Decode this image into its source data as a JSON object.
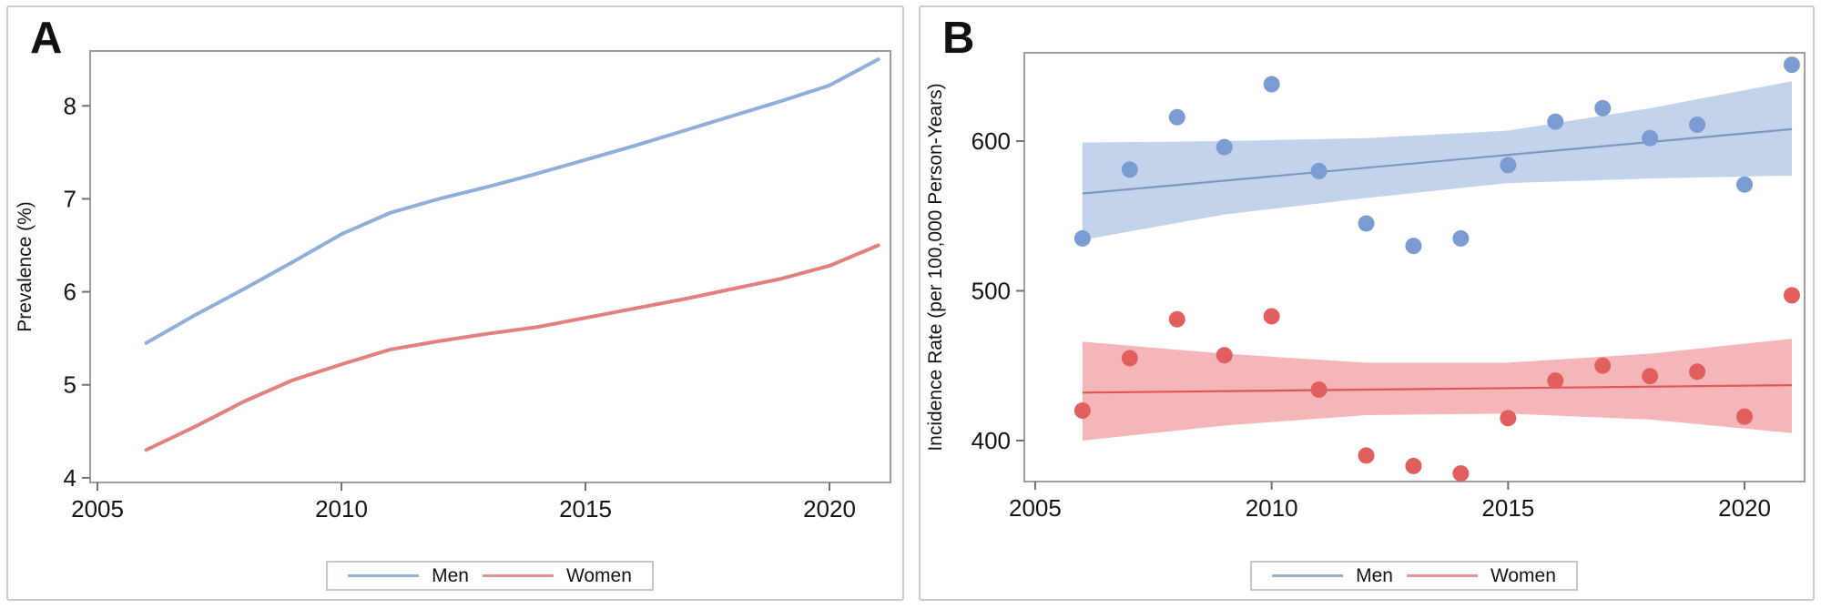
{
  "panels": [
    {
      "label": "A",
      "legend": [
        {
          "name": "Men",
          "color": "#92B1DB"
        },
        {
          "name": "Women",
          "color": "#E69090"
        }
      ],
      "chart_data": {
        "type": "line",
        "title": "",
        "xlabel": "",
        "ylabel": "Prevalence (%)",
        "x": [
          2006,
          2007,
          2008,
          2009,
          2010,
          2011,
          2012,
          2013,
          2014,
          2015,
          2016,
          2017,
          2018,
          2019,
          2020,
          2021
        ],
        "series": [
          {
            "name": "Men",
            "color": "#8FAFDA",
            "values": [
              5.45,
              5.75,
              6.03,
              6.32,
              6.62,
              6.85,
              7.0,
              7.13,
              7.27,
              7.42,
              7.57,
              7.73,
              7.89,
              8.05,
              8.22,
              8.5
            ]
          },
          {
            "name": "Women",
            "color": "#E28080",
            "values": [
              4.3,
              4.55,
              4.82,
              5.05,
              5.22,
              5.38,
              5.47,
              5.55,
              5.62,
              5.72,
              5.82,
              5.92,
              6.03,
              6.14,
              6.28,
              6.5
            ]
          }
        ],
        "xticks": [
          2005,
          2010,
          2015,
          2020
        ],
        "yticks": [
          4,
          5,
          6,
          7,
          8
        ],
        "xlim": [
          2004.85,
          2021.25
        ],
        "ylim": [
          3.95,
          8.59
        ],
        "grid": false,
        "legend_position": "bottom-center"
      }
    },
    {
      "label": "B",
      "legend": [
        {
          "name": "Men",
          "color": "#9BB0C4"
        },
        {
          "name": "Women",
          "color": "#E59296"
        }
      ],
      "chart_data": {
        "type": "scatter",
        "title": "",
        "xlabel": "",
        "ylabel": "Incidence Rate (per 100,000 Person-Years)",
        "x": [
          2006,
          2007,
          2008,
          2009,
          2010,
          2011,
          2012,
          2013,
          2014,
          2015,
          2016,
          2017,
          2018,
          2019,
          2020,
          2021
        ],
        "series": [
          {
            "name": "Men",
            "dot_color": "#7B9CD3",
            "line_color": "#7D96BE",
            "band_color": "#C4D3EC",
            "values": [
              535,
              581,
              616,
              596,
              638,
              580,
              545,
              530,
              535,
              584,
              613,
              622,
              602,
              611,
              571,
              651
            ],
            "trend": {
              "x": [
                2006,
                2021
              ],
              "y": [
                565,
                608
              ]
            },
            "band": {
              "x": [
                2006,
                2009,
                2012,
                2015,
                2018,
                2021
              ],
              "upper": [
                599,
                600,
                602,
                607,
                622,
                640
              ],
              "lower": [
                534,
                551,
                562,
                572,
                575,
                577
              ]
            }
          },
          {
            "name": "Women",
            "dot_color": "#E25F5F",
            "line_color": "#DE5858",
            "band_color": "#F5B6B9",
            "values": [
              420,
              455,
              481,
              457,
              483,
              434,
              390,
              383,
              378,
              415,
              440,
              450,
              443,
              446,
              416,
              497
            ],
            "trend": {
              "x": [
                2006,
                2021
              ],
              "y": [
                432,
                437
              ]
            },
            "band": {
              "x": [
                2006,
                2009,
                2012,
                2015,
                2018,
                2021
              ],
              "upper": [
                466,
                458,
                452,
                452,
                458,
                468
              ],
              "lower": [
                400,
                410,
                417,
                418,
                414,
                405
              ]
            }
          }
        ],
        "xticks": [
          2005,
          2010,
          2015,
          2020
        ],
        "yticks": [
          400,
          500,
          600
        ],
        "xlim": [
          2004.77,
          2021.27
        ],
        "ylim": [
          372.6,
          659.0
        ],
        "grid": false,
        "legend_position": "bottom-center"
      }
    }
  ]
}
